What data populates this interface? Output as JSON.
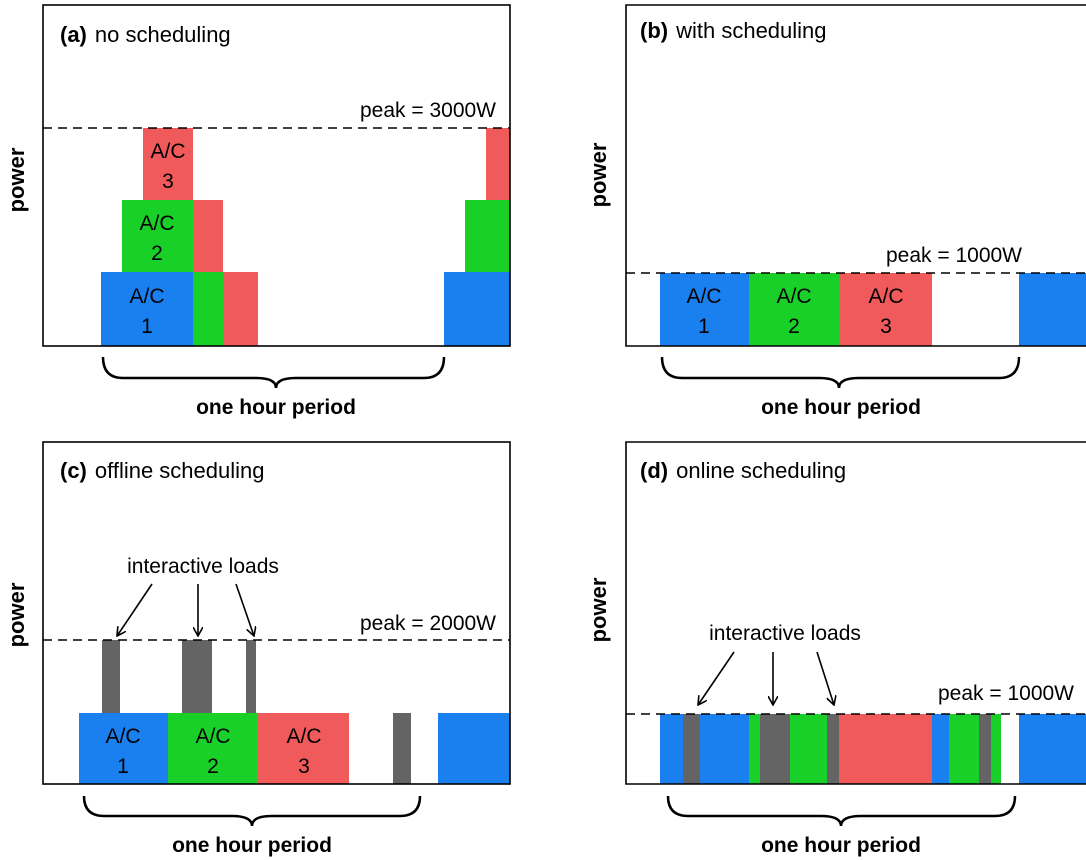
{
  "axis_label": "power",
  "period_label": "one hour period",
  "colors": {
    "ac1": "#1a80f0",
    "ac2": "#18d028",
    "ac3": "#f05a5a",
    "interactive": "#646464",
    "frame": "#000000"
  },
  "panels": [
    {
      "tag": "(a)",
      "title": "no scheduling",
      "peak_label": "peak = 3000W",
      "ac_labels": [
        {
          "line1": "A/C",
          "line2": "1"
        },
        {
          "line1": "A/C",
          "line2": "2"
        },
        {
          "line1": "A/C",
          "line2": "3"
        }
      ]
    },
    {
      "tag": "(b)",
      "title": "with scheduling",
      "peak_label": "peak = 1000W",
      "ac_labels": [
        {
          "line1": "A/C",
          "line2": "1"
        },
        {
          "line1": "A/C",
          "line2": "2"
        },
        {
          "line1": "A/C",
          "line2": "3"
        }
      ]
    },
    {
      "tag": "(c)",
      "title": "offline scheduling",
      "peak_label": "peak = 2000W",
      "interactive_label": "interactive loads",
      "ac_labels": [
        {
          "line1": "A/C",
          "line2": "1"
        },
        {
          "line1": "A/C",
          "line2": "2"
        },
        {
          "line1": "A/C",
          "line2": "3"
        }
      ]
    },
    {
      "tag": "(d)",
      "title": "online scheduling",
      "peak_label": "peak = 1000W",
      "interactive_label": "interactive loads"
    }
  ]
}
